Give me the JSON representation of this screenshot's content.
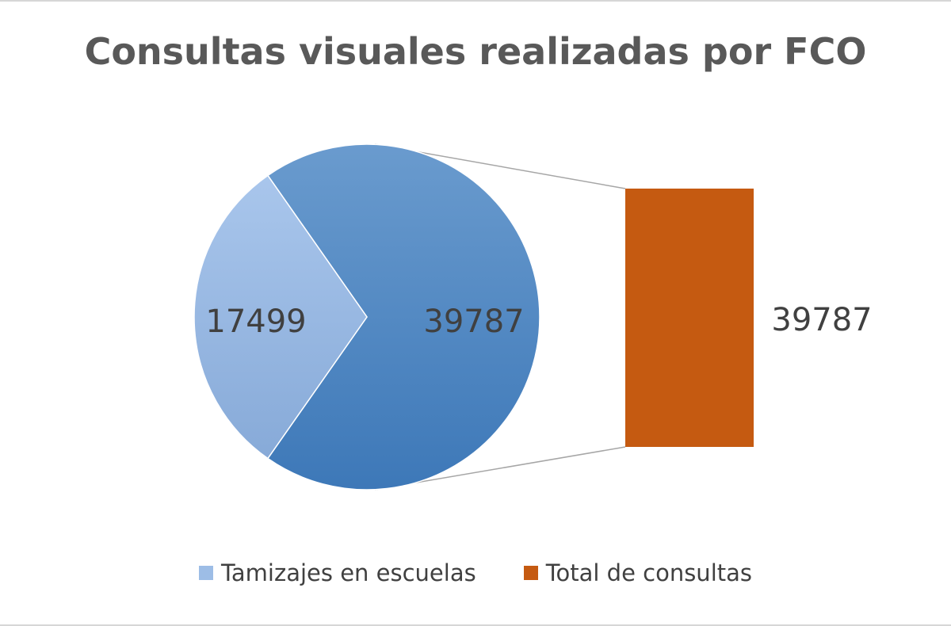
{
  "chart_data": {
    "type": "pie",
    "subtype": "bar-of-pie",
    "title": "Consultas visuales realizadas por FCO",
    "pie_slices": [
      {
        "name": "Tamizajes en escuelas",
        "value": 17499,
        "label": "17499",
        "color": "#9dbde6"
      },
      {
        "name": "Total de consultas",
        "value": 39787,
        "label": "39787",
        "color": "#4a86c5"
      }
    ],
    "bar": {
      "name": "Total de consultas",
      "value": 39787,
      "label": "39787",
      "color": "#c55a11"
    },
    "legend": {
      "placement": "bottom",
      "entries": [
        {
          "label": "Tamizajes en escuelas",
          "color": "#9dbde6"
        },
        {
          "label": "Total de consultas",
          "color": "#c55a11"
        }
      ]
    }
  }
}
